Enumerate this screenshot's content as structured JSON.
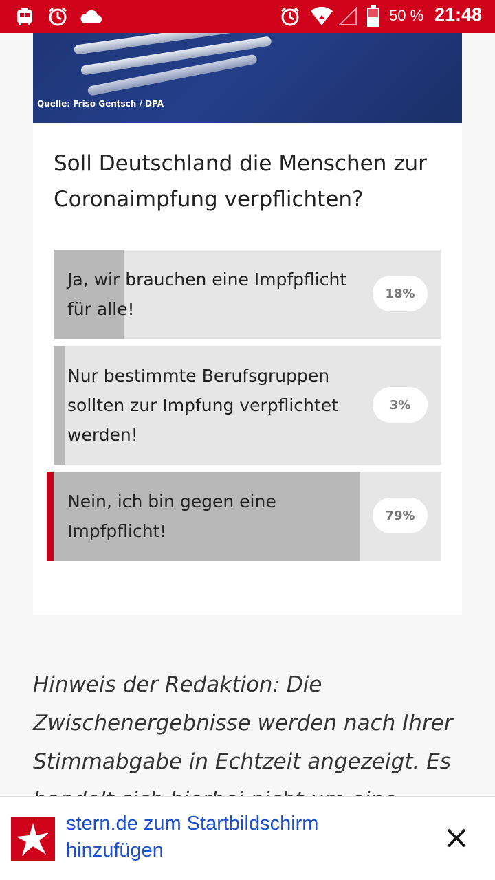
{
  "statusbar": {
    "icons": [
      "notification-icon",
      "alarm-icon",
      "cloud-icon",
      "alarm-icon",
      "wifi-icon",
      "signal-icon",
      "battery-icon"
    ],
    "battery": "50 %",
    "time": "21:48"
  },
  "article": {
    "photo_credit": "Quelle: Friso Gentsch / DPA",
    "poll": {
      "question": "Soll Deutschland die Menschen zur Coronaimpfung verpflichten?",
      "options": [
        {
          "label": "Ja, wir brauchen eine Impfpflicht für alle!",
          "percent": "18%",
          "value": 18,
          "selected": false
        },
        {
          "label": "Nur bestimmte Berufsgruppen sollten zur Impfung verpflichtet werden!",
          "percent": "3%",
          "value": 3,
          "selected": false
        },
        {
          "label": "Nein, ich bin gegen eine Impfpflicht!",
          "percent": "79%",
          "value": 79,
          "selected": true
        }
      ]
    },
    "note": "Hinweis der Redaktion: Die Zwischenergebnisse werden nach Ihrer Stimmabgabe in Echtzeit angezeigt. Es handelt sich hierbei nicht um eine"
  },
  "banner": {
    "text": "stern.de zum Startbildschirm hinzufügen",
    "logo_icon": "stern-star-icon",
    "close_icon": "close-icon"
  },
  "colors": {
    "brand_red": "#d0021b",
    "link_blue": "#1a4fd0",
    "bar_fill": "#b8b8b8",
    "bar_bg": "#e6e6e6"
  }
}
